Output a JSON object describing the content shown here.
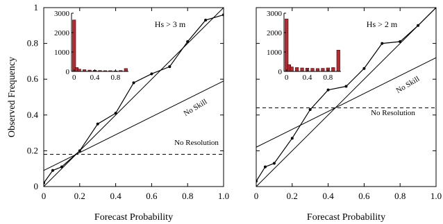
{
  "chart_data": [
    {
      "type": "line",
      "condition_label": "Hs > 3 m",
      "xlabel": "Forecast Probability",
      "ylabel": "Observed Frequency",
      "xlim": [
        0,
        1
      ],
      "ylim": [
        0,
        1
      ],
      "x_ticks": [
        "0",
        "0.2",
        "0.4",
        "0.6",
        "0.8",
        "1.0"
      ],
      "y_ticks": [
        "0",
        "0.2",
        "0.4",
        "0.6",
        "0.8",
        "1"
      ],
      "series": [
        {
          "x": [
            0.0,
            0.05,
            0.1,
            0.2,
            0.3,
            0.4,
            0.5,
            0.6,
            0.7,
            0.8,
            0.9,
            1.0
          ],
          "y": [
            0.02,
            0.09,
            0.11,
            0.2,
            0.35,
            0.41,
            0.58,
            0.63,
            0.67,
            0.81,
            0.93,
            0.96
          ]
        }
      ],
      "reference_lines": {
        "perfect_reliability": [
          [
            0,
            0
          ],
          [
            1,
            1
          ]
        ],
        "no_skill": [
          [
            0,
            0.09
          ],
          [
            1,
            0.59
          ]
        ],
        "no_resolution_y": 0.18
      },
      "annotations": {
        "no_skill": "No Skill",
        "no_resolution": "No Resolution"
      },
      "inset": {
        "type": "bar",
        "x": [
          0.0,
          0.05,
          0.1,
          0.2,
          0.3,
          0.4,
          0.5,
          0.6,
          0.7,
          0.8,
          0.9,
          1.0
        ],
        "values": [
          2650,
          200,
          120,
          90,
          70,
          60,
          50,
          40,
          40,
          30,
          50,
          150
        ],
        "xlim": [
          -0.05,
          1.05
        ],
        "ylim": [
          0,
          3000
        ],
        "x_ticks": [
          "0",
          "0.4",
          "0.8"
        ],
        "y_ticks": [
          "0",
          "1000",
          "2000",
          "3000"
        ],
        "bar_color": "#c0262d"
      }
    },
    {
      "type": "line",
      "condition_label": "Hs > 2 m",
      "xlabel": "Forecast Probability",
      "ylabel": "",
      "xlim": [
        0,
        1
      ],
      "ylim": [
        0,
        1
      ],
      "x_ticks": [
        "0",
        "0.2",
        "0.4",
        "0.6",
        "0.8",
        "1.0"
      ],
      "series": [
        {
          "x": [
            0.0,
            0.05,
            0.1,
            0.2,
            0.3,
            0.4,
            0.5,
            0.6,
            0.7,
            0.8,
            0.9,
            1.0
          ],
          "y": [
            0.03,
            0.11,
            0.13,
            0.27,
            0.43,
            0.54,
            0.56,
            0.66,
            0.8,
            0.81,
            0.9,
            1.0
          ]
        }
      ],
      "reference_lines": {
        "perfect_reliability": [
          [
            0,
            0
          ],
          [
            1,
            1
          ]
        ],
        "no_skill": [
          [
            0,
            0.22
          ],
          [
            1,
            0.72
          ]
        ],
        "no_resolution_y": 0.44
      },
      "annotations": {
        "no_skill": "No Skill",
        "no_resolution": "No Resolution"
      },
      "inset": {
        "type": "bar",
        "x": [
          0.0,
          0.05,
          0.1,
          0.2,
          0.3,
          0.4,
          0.5,
          0.6,
          0.7,
          0.8,
          0.9,
          1.0
        ],
        "values": [
          2700,
          350,
          230,
          200,
          180,
          170,
          160,
          150,
          160,
          180,
          200,
          1100
        ],
        "xlim": [
          -0.05,
          1.05
        ],
        "ylim": [
          0,
          3000
        ],
        "x_ticks": [
          "0",
          "0.4",
          "0.8"
        ],
        "y_ticks": [
          "0",
          "1000",
          "2000",
          "3000"
        ],
        "bar_color": "#c0262d"
      }
    }
  ]
}
